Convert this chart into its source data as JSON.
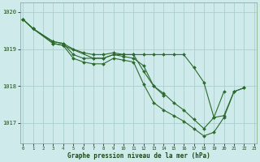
{
  "background_color": "#ceeaea",
  "grid_color": "#aacfcf",
  "line_color": "#2d6b2d",
  "marker_color": "#2d6b2d",
  "title": "Graphe pression niveau de la mer (hPa)",
  "ylabel_vals": [
    1017,
    1018,
    1019,
    1020
  ],
  "xlabel_vals": [
    0,
    1,
    2,
    3,
    4,
    5,
    6,
    7,
    8,
    9,
    10,
    11,
    12,
    13,
    14,
    15,
    16,
    17,
    18,
    19,
    20,
    21,
    22,
    23
  ],
  "ylim": [
    1016.45,
    1020.25
  ],
  "xlim": [
    -0.3,
    23.3
  ],
  "series": [
    [
      1019.8,
      1019.55,
      null,
      1019.15,
      1019.1,
      null,
      null,
      1018.75,
      1018.75,
      1018.85,
      1018.8,
      1018.75,
      1018.55,
      1018.0,
      1017.75,
      null,
      null,
      null,
      null,
      null,
      null,
      null,
      null,
      null
    ],
    [
      1019.8,
      1019.55,
      null,
      1019.2,
      1019.15,
      1018.85,
      1018.75,
      1018.75,
      1018.75,
      1018.85,
      1018.85,
      1018.85,
      1018.85,
      1018.85,
      1018.85,
      1018.85,
      1018.85,
      1018.5,
      1018.1,
      1017.15,
      1017.85,
      null,
      null,
      null
    ],
    [
      1019.8,
      1019.55,
      null,
      1019.2,
      1019.15,
      1019.0,
      1018.9,
      1018.85,
      1018.85,
      1018.9,
      1018.85,
      1018.85,
      1018.4,
      1018.0,
      1017.8,
      1017.55,
      1017.35,
      1017.1,
      1016.85,
      1017.15,
      1017.2,
      1017.85,
      1017.95,
      null
    ],
    [
      1019.8,
      1019.55,
      null,
      1019.15,
      1019.1,
      1018.75,
      1018.65,
      1018.6,
      1018.6,
      1018.75,
      1018.7,
      1018.65,
      1018.05,
      1017.55,
      1017.35,
      1017.2,
      1017.05,
      1016.85,
      1016.65,
      1016.75,
      1017.15,
      1017.85,
      1017.95,
      null
    ]
  ]
}
